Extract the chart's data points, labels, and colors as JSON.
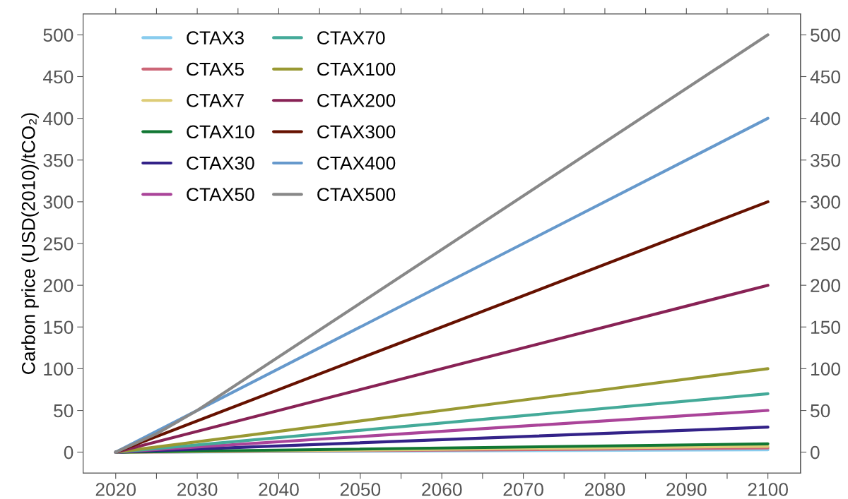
{
  "chart_data": {
    "type": "line",
    "ylabel": "Carbon price (USD(2010)/tCO₂)",
    "xlim": [
      2016,
      2104
    ],
    "ylim": [
      -25,
      525
    ],
    "y2lim": [
      -25,
      525
    ],
    "xticks": [
      2020,
      {
        "value": 2025,
        "label": null
      },
      2030,
      {
        "value": 2035,
        "label": null
      },
      2040,
      {
        "value": 2045,
        "label": null
      },
      2050,
      {
        "value": 2055,
        "label": null
      },
      2060,
      {
        "value": 2065,
        "label": null
      },
      2070,
      {
        "value": 2075,
        "label": null
      },
      2080,
      {
        "value": 2085,
        "label": null
      },
      2090,
      {
        "value": 2095,
        "label": null
      },
      2100
    ],
    "yticks": [
      0,
      50,
      100,
      150,
      200,
      250,
      300,
      350,
      400,
      450,
      500
    ],
    "y2ticks": [
      0,
      50,
      100,
      150,
      200,
      250,
      300,
      350,
      400,
      450,
      500
    ],
    "grid": false,
    "legend": "top left",
    "marker": "none",
    "line_style": "solid",
    "x": [
      2020,
      2100
    ],
    "series": [
      {
        "name": "CTAX3",
        "color": "#88ccee",
        "values": [
          0,
          3
        ]
      },
      {
        "name": "CTAX5",
        "color": "#cc6677",
        "values": [
          0,
          5
        ]
      },
      {
        "name": "CTAX7",
        "color": "#ddcc77",
        "values": [
          0,
          7
        ]
      },
      {
        "name": "CTAX10",
        "color": "#117733",
        "values": [
          0,
          10
        ]
      },
      {
        "name": "CTAX30",
        "color": "#332288",
        "values": [
          0,
          30
        ]
      },
      {
        "name": "CTAX50",
        "color": "#aa4499",
        "values": [
          0,
          50
        ]
      },
      {
        "name": "CTAX70",
        "color": "#44aa99",
        "values": [
          0,
          70
        ]
      },
      {
        "name": "CTAX100",
        "color": "#999933",
        "values": [
          0,
          100
        ]
      },
      {
        "name": "CTAX200",
        "color": "#882255",
        "values": [
          0,
          200
        ]
      },
      {
        "name": "CTAX300",
        "color": "#661100",
        "values": [
          0,
          300
        ]
      },
      {
        "name": "CTAX400",
        "color": "#6699cc",
        "values": [
          0,
          400
        ]
      },
      {
        "name": "CTAX500",
        "color": "#888888",
        "x": [
          2020,
          2025,
          2030,
          2100
        ],
        "values": [
          0,
          22,
          50,
          500
        ]
      }
    ]
  }
}
